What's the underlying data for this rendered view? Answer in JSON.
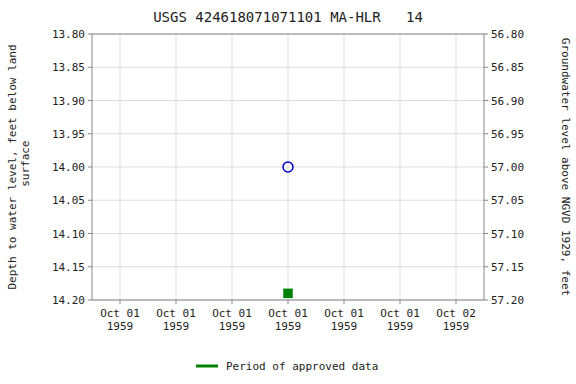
{
  "chart_data": {
    "type": "scatter",
    "title": "USGS 424618071071101 MA-HLR   14",
    "ylabel": "Depth to water level, feet below land\n surface",
    "y2label": "Groundwater level above NGVD 1929, feet",
    "categories": [
      "Oct 01\n1959",
      "Oct 01\n1959",
      "Oct 01\n1959",
      "Oct 01\n1959",
      "Oct 01\n1959",
      "Oct 01\n1959",
      "Oct 02\n1959"
    ],
    "series": [
      {
        "color": "#0000cc",
        "marker": "open-circle",
        "values": [
          null,
          null,
          null,
          14.0,
          null,
          null,
          null
        ]
      },
      {
        "name": "Period of approved data",
        "color": "#008000",
        "marker": "square",
        "values": [
          null,
          null,
          null,
          14.19,
          null,
          null,
          null
        ]
      }
    ],
    "ylim": [
      14.2,
      13.8
    ],
    "yticks": [
      {
        "value": 13.8,
        "label": "13.80"
      },
      {
        "value": 13.85,
        "label": "13.85"
      },
      {
        "value": 13.9,
        "label": "13.90"
      },
      {
        "value": 13.95,
        "label": "13.95"
      },
      {
        "value": 14.0,
        "label": "14.00"
      },
      {
        "value": 14.05,
        "label": "14.05"
      },
      {
        "value": 14.1,
        "label": "14.10"
      },
      {
        "value": 14.15,
        "label": "14.15"
      },
      {
        "value": 14.2,
        "label": "14.20"
      }
    ],
    "y2lim": [
      57.2,
      56.8
    ],
    "y2ticks": [
      {
        "value": 56.8,
        "label": "56.80"
      },
      {
        "value": 56.85,
        "label": "56.85"
      },
      {
        "value": 56.9,
        "label": "56.90"
      },
      {
        "value": 56.95,
        "label": "56.95"
      },
      {
        "value": 57.0,
        "label": "57.00"
      },
      {
        "value": 57.05,
        "label": "57.05"
      },
      {
        "value": 57.1,
        "label": "57.10"
      },
      {
        "value": 57.15,
        "label": "57.15"
      },
      {
        "value": 57.2,
        "label": "57.20"
      }
    ],
    "grid": true,
    "legend": "bottom"
  }
}
